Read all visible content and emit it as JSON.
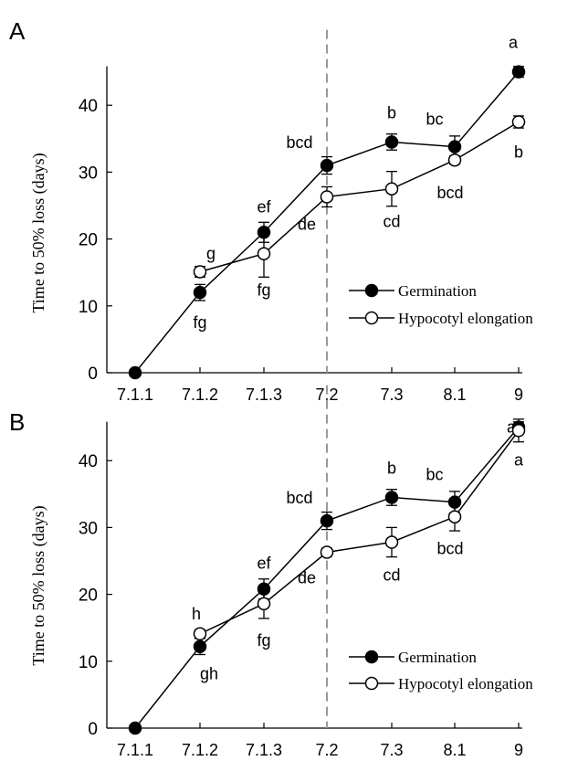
{
  "chart_data": [
    {
      "panel_label": "A",
      "type": "line",
      "ylabel": "Time to 50% loss (days)",
      "ylim": [
        0,
        45
      ],
      "yticks": [
        0,
        10,
        20,
        30,
        40
      ],
      "categories": [
        "7.1.1",
        "7.1.2",
        "7.1.3",
        "7.2",
        "7.3",
        "8.1",
        "9"
      ],
      "reference_line_at": "7.2",
      "legend_position": "center-right",
      "series": [
        {
          "name": "Germination",
          "marker": "filled-circle",
          "values": [
            0,
            12,
            21,
            31,
            34.5,
            33.8,
            45
          ],
          "errors": [
            0,
            1.2,
            1.5,
            1.3,
            1.2,
            1.6,
            0.8
          ],
          "letters": [
            "",
            "fg",
            "ef",
            "bcd",
            "b",
            "bc",
            "a"
          ]
        },
        {
          "name": "Hypocotyl elongation",
          "marker": "open-circle",
          "values": [
            null,
            15.1,
            17.8,
            26.3,
            27.5,
            31.8,
            37.5
          ],
          "errors": [
            0,
            0.8,
            3.5,
            1.5,
            2.6,
            0.6,
            0.9
          ],
          "letters": [
            "",
            "g",
            "fg",
            "de",
            "cd",
            "bcd",
            "b"
          ]
        }
      ]
    },
    {
      "panel_label": "B",
      "type": "line",
      "ylabel": "Time to 50% loss (days)",
      "ylim": [
        0,
        45
      ],
      "yticks": [
        0,
        10,
        20,
        30,
        40
      ],
      "categories": [
        "7.1.1",
        "7.1.2",
        "7.1.3",
        "7.2",
        "7.3",
        "8.1",
        "9"
      ],
      "reference_line_at": "7.2",
      "legend_position": "bottom-right",
      "series": [
        {
          "name": "Germination",
          "marker": "filled-circle",
          "values": [
            0,
            12.2,
            20.8,
            31,
            34.5,
            33.8,
            45
          ],
          "errors": [
            0,
            1.2,
            1.5,
            1.3,
            1.2,
            1.6,
            0.8
          ],
          "letters": [
            "",
            "gh",
            "ef",
            "bcd",
            "b",
            "bc",
            "a"
          ]
        },
        {
          "name": "Hypocotyl elongation",
          "marker": "open-circle",
          "values": [
            null,
            14.1,
            18.6,
            26.3,
            27.8,
            31.6,
            44.5
          ],
          "errors": [
            0,
            0.6,
            2.2,
            0.6,
            2.2,
            2.1,
            1.7
          ],
          "letters": [
            "",
            "h",
            "fg",
            "de",
            "cd",
            "bcd",
            "a"
          ]
        }
      ]
    }
  ]
}
